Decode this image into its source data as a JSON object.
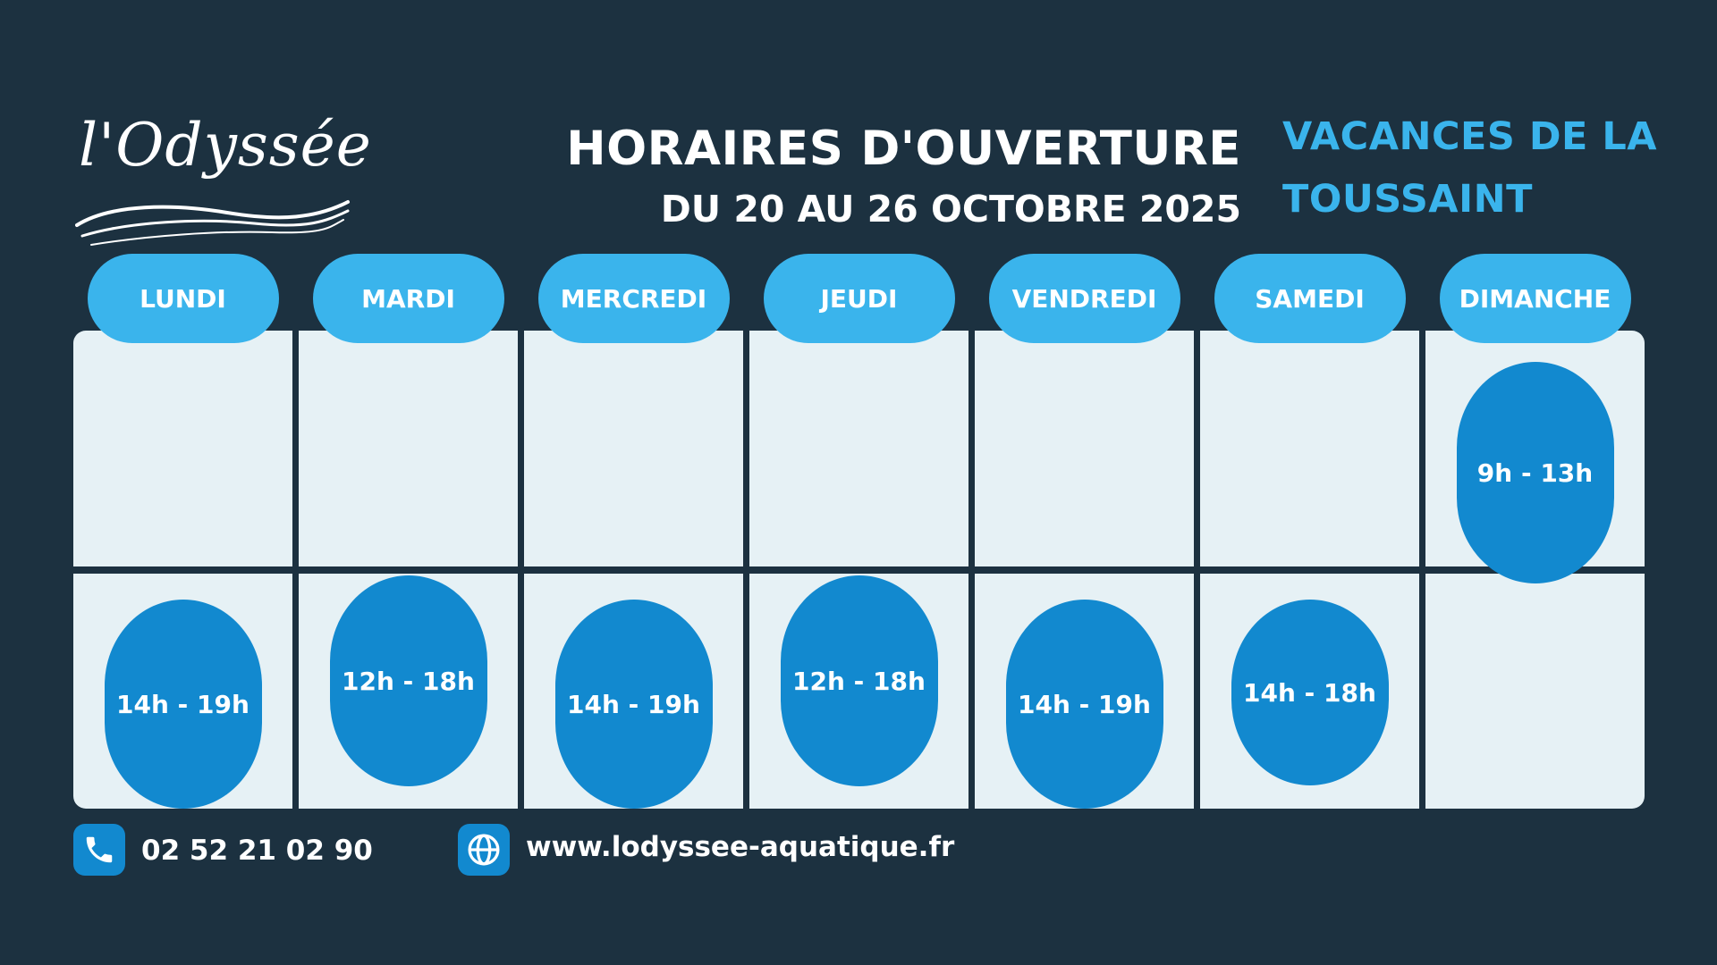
{
  "brand": {
    "logo_text": "l'Odyssée"
  },
  "header": {
    "title": "HORAIRES D'OUVERTURE",
    "dates": "DU 20 AU 26 OCTOBRE 2025",
    "period_line1": "VACANCES DE LA",
    "period_line2": "TOUSSAINT"
  },
  "days": [
    {
      "label": "LUNDI",
      "morning": "",
      "afternoon": "14h - 19h"
    },
    {
      "label": "MARDI",
      "morning": "",
      "afternoon": "12h - 18h"
    },
    {
      "label": "MERCREDI",
      "morning": "",
      "afternoon": "14h - 19h"
    },
    {
      "label": "JEUDI",
      "morning": "",
      "afternoon": "12h - 18h"
    },
    {
      "label": "VENDREDI",
      "morning": "",
      "afternoon": "14h - 19h"
    },
    {
      "label": "SAMEDI",
      "morning": "",
      "afternoon": "14h - 18h"
    },
    {
      "label": "DIMANCHE",
      "morning": "9h - 13h",
      "afternoon": ""
    }
  ],
  "contact": {
    "phone": "02 52 21 02 90",
    "website": "www.lodyssee-aquatique.fr",
    "phone_icon": "phone-icon",
    "web_icon": "globe-icon"
  },
  "colors": {
    "background": "#1c3140",
    "accent_light": "#3ab4ec",
    "accent_dark": "#1289cf",
    "cell": "#e6f1f5"
  }
}
